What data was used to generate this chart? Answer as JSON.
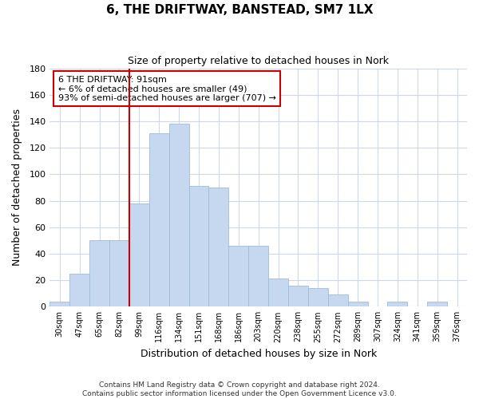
{
  "title": "6, THE DRIFTWAY, BANSTEAD, SM7 1LX",
  "subtitle": "Size of property relative to detached houses in Nork",
  "xlabel": "Distribution of detached houses by size in Nork",
  "ylabel": "Number of detached properties",
  "bar_labels": [
    "30sqm",
    "47sqm",
    "65sqm",
    "82sqm",
    "99sqm",
    "116sqm",
    "134sqm",
    "151sqm",
    "168sqm",
    "186sqm",
    "203sqm",
    "220sqm",
    "238sqm",
    "255sqm",
    "272sqm",
    "289sqm",
    "307sqm",
    "324sqm",
    "341sqm",
    "359sqm",
    "376sqm"
  ],
  "bar_values": [
    4,
    25,
    50,
    50,
    78,
    131,
    138,
    91,
    90,
    46,
    46,
    21,
    16,
    14,
    9,
    4,
    0,
    4,
    0,
    4,
    0
  ],
  "bar_color": "#c5d8f0",
  "bar_edge_color": "#a0bcd8",
  "vline_x": 3.5,
  "vline_color": "#cc0000",
  "annotation_text": "6 THE DRIFTWAY: 91sqm\n← 6% of detached houses are smaller (49)\n93% of semi-detached houses are larger (707) →",
  "annotation_box_color": "#ffffff",
  "annotation_box_edge": "#cc0000",
  "ylim": [
    0,
    180
  ],
  "yticks": [
    0,
    20,
    40,
    60,
    80,
    100,
    120,
    140,
    160,
    180
  ],
  "footer": "Contains HM Land Registry data © Crown copyright and database right 2024.\nContains public sector information licensed under the Open Government Licence v3.0.",
  "bg_color": "#ffffff",
  "grid_color": "#cdd9e8"
}
